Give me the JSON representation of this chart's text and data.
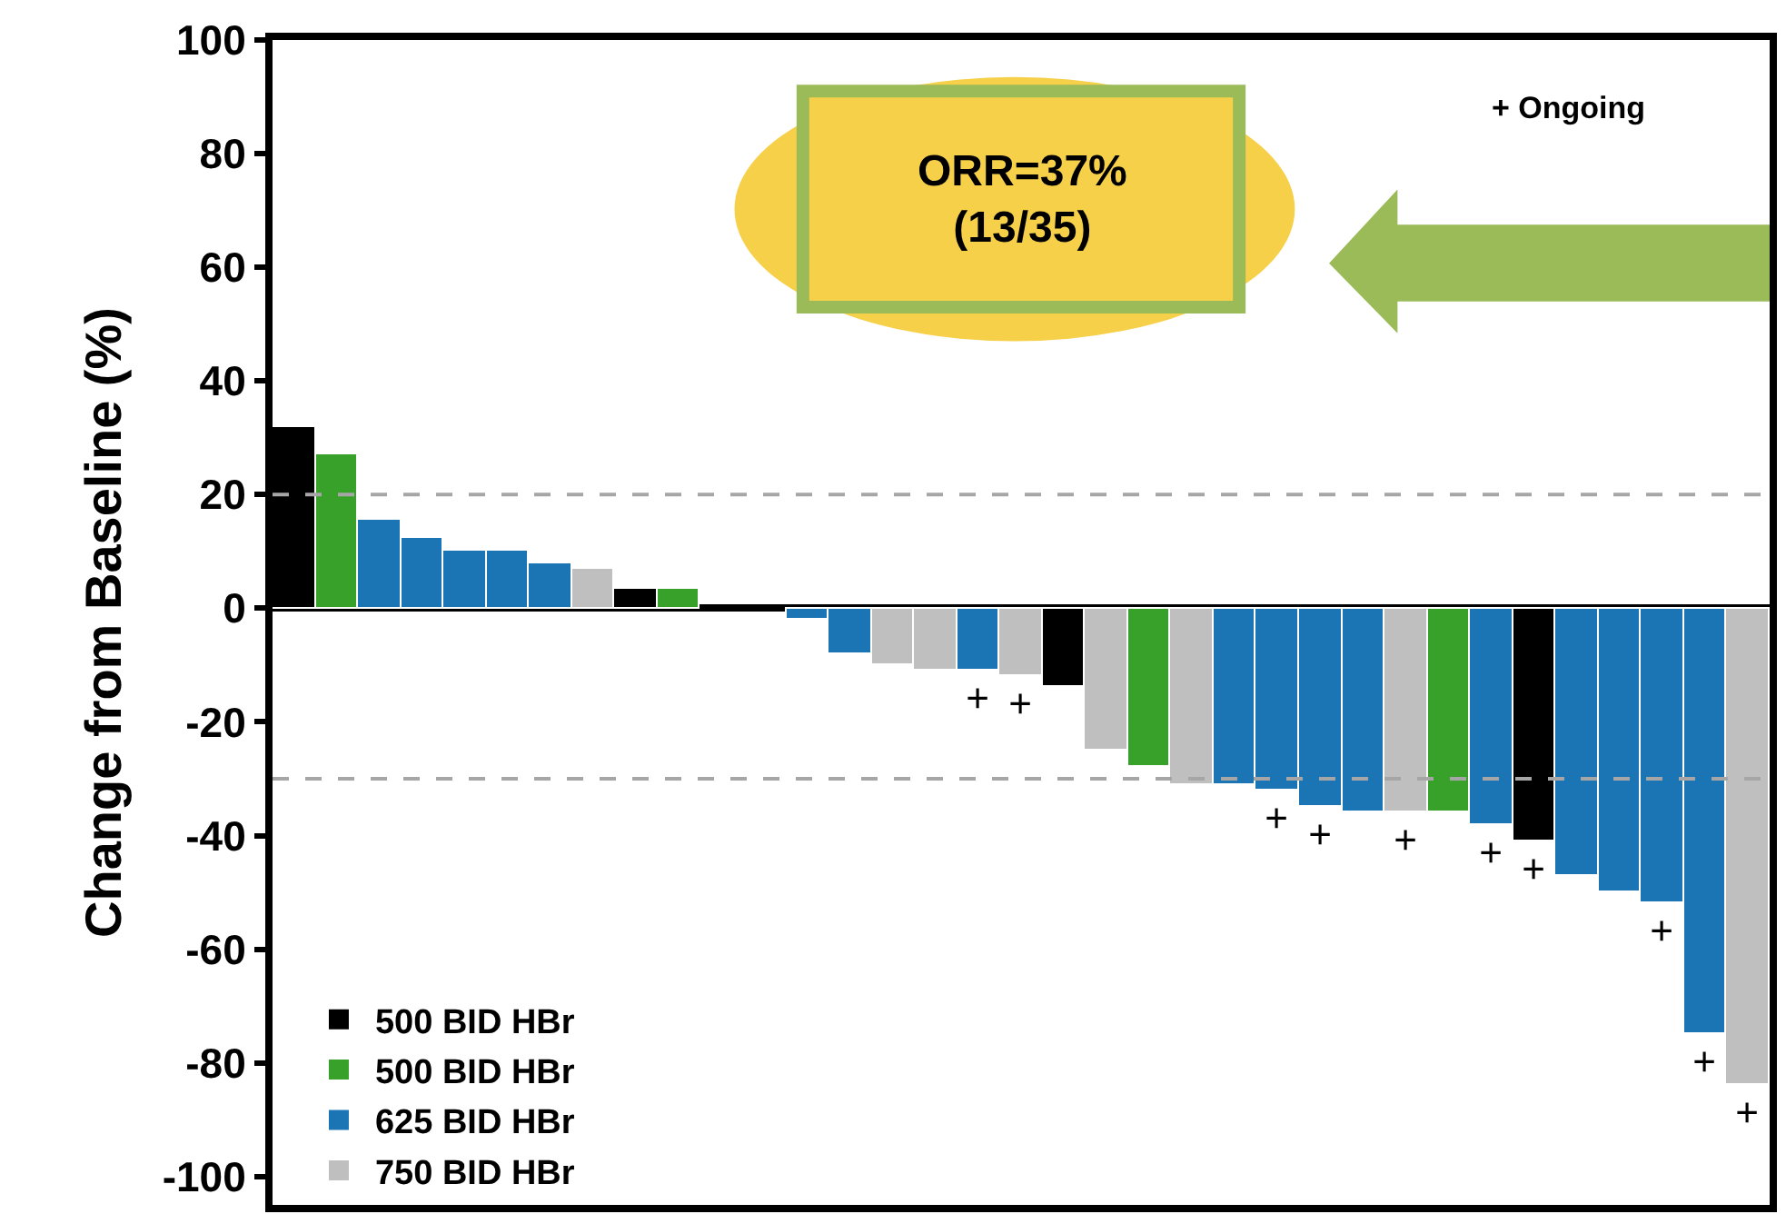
{
  "chart_data": {
    "type": "bar",
    "ylabel": "Change from Baseline (%)",
    "categories": [
      null,
      null,
      null,
      null,
      null,
      null,
      null,
      null,
      null,
      null,
      null,
      null,
      null,
      null,
      null,
      null,
      null,
      null,
      null,
      null,
      null,
      null,
      null,
      null,
      null,
      null,
      null,
      null,
      null,
      null,
      null,
      null,
      null,
      null,
      null
    ],
    "series": [
      {
        "name": "500 BID HBr",
        "color": "#000000",
        "values": [
          32,
          null,
          null,
          null,
          null,
          null,
          null,
          null,
          3.5,
          null,
          null,
          null,
          null,
          null,
          null,
          null,
          null,
          null,
          -14,
          null,
          null,
          null,
          null,
          null,
          null,
          null,
          null,
          null,
          null,
          -41,
          null,
          null,
          null,
          null,
          null
        ],
        "value_labels": [
          null,
          null,
          null,
          null,
          null,
          null,
          null,
          null,
          null,
          null,
          null,
          null,
          null,
          null,
          null,
          null,
          null,
          null,
          null,
          null,
          null,
          null,
          null,
          null,
          null,
          null,
          null,
          null,
          null,
          "+",
          null,
          null,
          null,
          null,
          null
        ]
      },
      {
        "name": "500 BID HBr",
        "color": "#38a12a",
        "values": [
          null,
          27,
          null,
          null,
          null,
          null,
          null,
          null,
          null,
          3.5,
          null,
          null,
          null,
          null,
          null,
          null,
          null,
          null,
          null,
          null,
          -28,
          null,
          null,
          null,
          null,
          null,
          null,
          -36,
          null,
          null,
          null,
          null,
          null,
          null,
          null
        ],
        "value_labels": [
          null,
          null,
          null,
          null,
          null,
          null,
          null,
          null,
          null,
          null,
          null,
          null,
          null,
          null,
          null,
          null,
          null,
          null,
          null,
          null,
          null,
          null,
          null,
          null,
          null,
          null,
          null,
          null,
          null,
          null,
          null,
          null,
          null,
          null,
          null
        ]
      },
      {
        "name": "625 BID HBr",
        "color": "#1b75b5",
        "values": [
          null,
          null,
          15.5,
          12.5,
          10,
          10,
          8,
          null,
          null,
          null,
          null,
          null,
          -2,
          -8,
          null,
          null,
          -11,
          null,
          null,
          null,
          null,
          null,
          -31,
          -32,
          -35,
          -36,
          null,
          null,
          -38,
          null,
          -47,
          -50,
          -52,
          -75,
          null
        ],
        "value_labels": [
          null,
          null,
          null,
          null,
          null,
          null,
          null,
          null,
          null,
          null,
          null,
          null,
          null,
          null,
          null,
          null,
          "+",
          null,
          null,
          null,
          null,
          null,
          null,
          "+",
          "+",
          null,
          null,
          null,
          "+",
          null,
          null,
          null,
          "+",
          "+",
          null
        ]
      },
      {
        "name": "750 BID HBr",
        "color": "#bfbfbf",
        "values": [
          null,
          null,
          null,
          null,
          null,
          null,
          null,
          7,
          null,
          null,
          null,
          null,
          null,
          null,
          -10,
          -11,
          null,
          -12,
          null,
          -25,
          null,
          -31,
          null,
          null,
          null,
          null,
          -36,
          null,
          null,
          null,
          null,
          null,
          null,
          null,
          -84
        ],
        "value_labels": [
          null,
          null,
          null,
          null,
          null,
          null,
          null,
          null,
          null,
          null,
          null,
          null,
          null,
          null,
          null,
          null,
          null,
          "+",
          null,
          null,
          null,
          null,
          null,
          null,
          null,
          null,
          "+",
          null,
          null,
          null,
          null,
          null,
          null,
          null,
          "+"
        ]
      }
    ],
    "ylim": [
      -105,
      100
    ],
    "yticks": [
      -100,
      -80,
      -60,
      -40,
      -20,
      0,
      20,
      40,
      60,
      80,
      100
    ],
    "ref_lines": [
      {
        "axis": "y",
        "value": 20,
        "color": "#a6a6a6",
        "line_style": "dashed"
      },
      {
        "axis": "y",
        "value": -30,
        "color": "#a6a6a6",
        "line_style": "dashed"
      }
    ],
    "annotations": [
      "ORR=37%\n(13/35)",
      "+ Ongoing"
    ],
    "legend": "bottom left",
    "grid": false
  }
}
